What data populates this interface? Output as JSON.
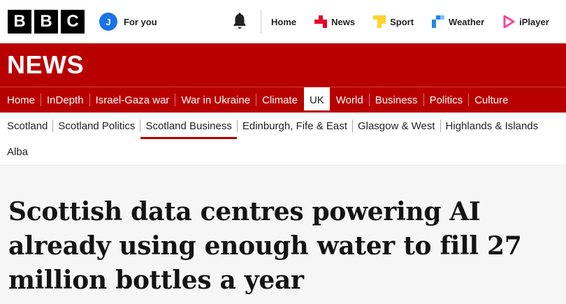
{
  "brand": {
    "letters": [
      "B",
      "B",
      "C"
    ]
  },
  "user": {
    "initial": "J",
    "label": "For you"
  },
  "topnav": [
    {
      "label": "Home",
      "icon": "none"
    },
    {
      "label": "News",
      "icon": "news-icon",
      "color": "#e4002b"
    },
    {
      "label": "Sport",
      "icon": "sport-icon",
      "color": "#ffd230"
    },
    {
      "label": "Weather",
      "icon": "weather-icon",
      "color": "#1e88e5"
    },
    {
      "label": "iPlayer",
      "icon": "iplayer-icon",
      "color": "#f54997"
    }
  ],
  "news_logo": "NEWS",
  "section_nav": {
    "items": [
      "Home",
      "InDepth",
      "Israel-Gaza war",
      "War in Ukraine",
      "Climate",
      "UK",
      "World",
      "Business",
      "Politics",
      "Culture"
    ],
    "active": "UK"
  },
  "sub_nav": {
    "items": [
      "Scotland",
      "Scotland Politics",
      "Scotland Business",
      "Edinburgh, Fife & East",
      "Glasgow & West",
      "Highlands & Islands"
    ],
    "row2": [
      "Alba"
    ],
    "active": "Scotland Business"
  },
  "article": {
    "headline": "Scottish data centres powering AI already using enough water to fill 27 million bottles a year"
  },
  "colors": {
    "bbc_red": "#b80000",
    "accent_blue": "#1a73e8"
  }
}
